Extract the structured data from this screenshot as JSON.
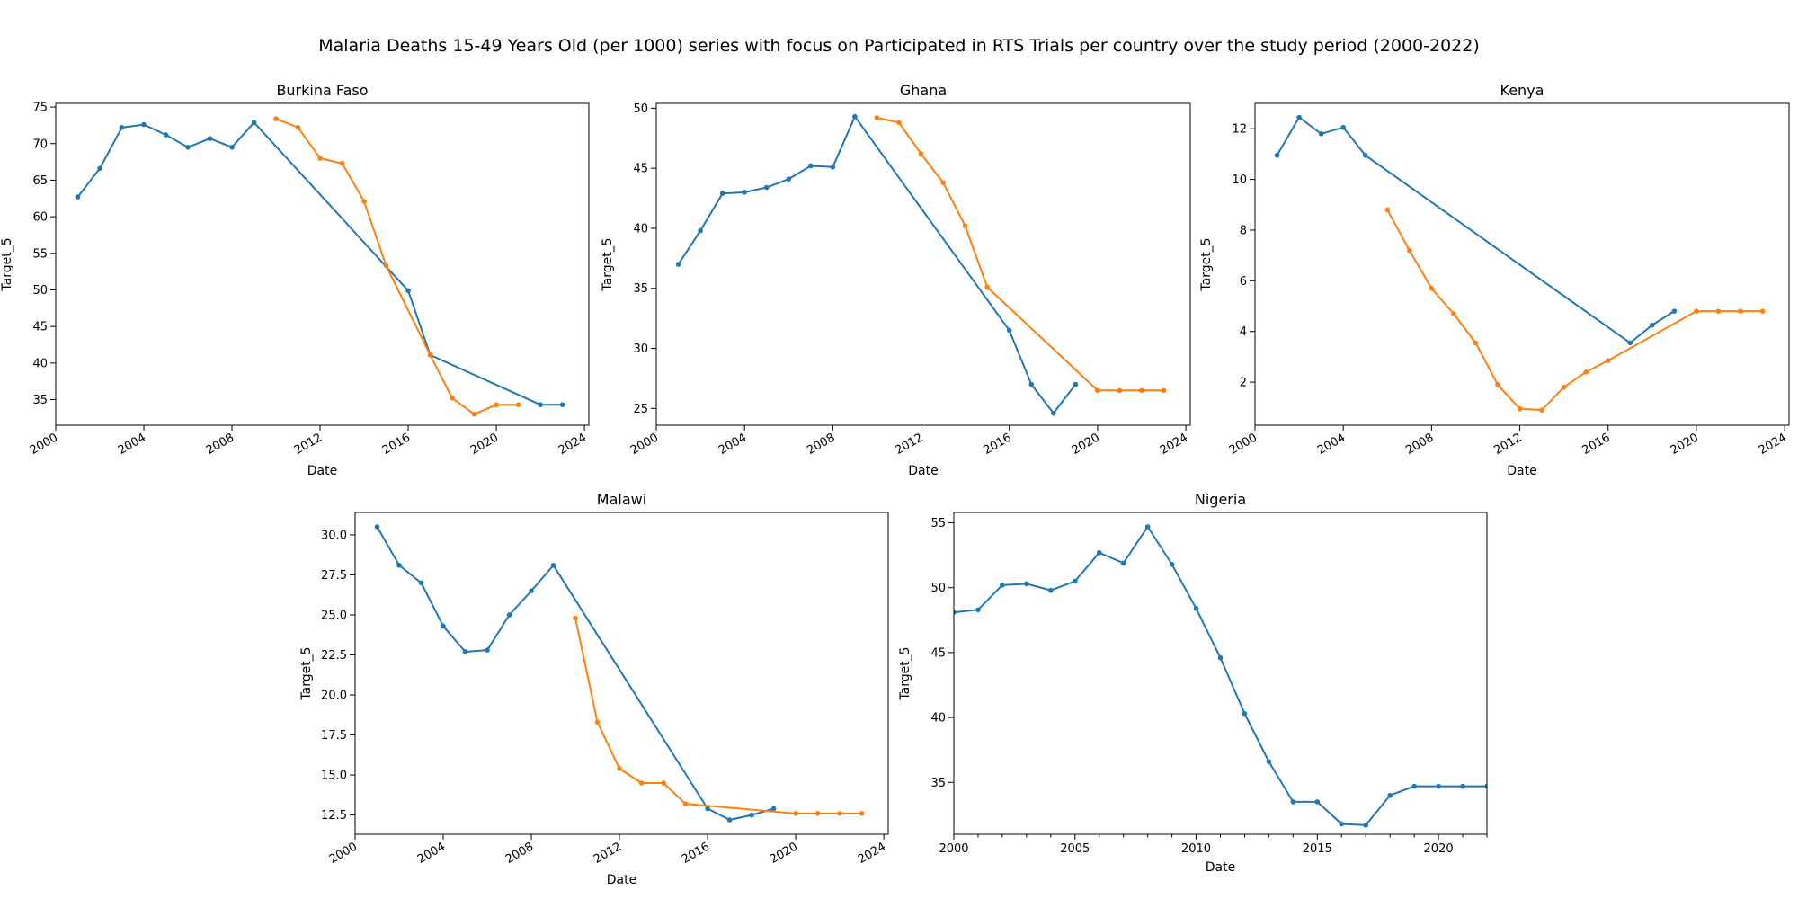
{
  "figure": {
    "title": "Malaria Deaths 15-49 Years Old (per 1000) series with focus on Participated in RTS Trials per country over the study period (2000-2022)"
  },
  "colors": {
    "series_a": "#1f77b4",
    "series_b": "#ff7f0e"
  },
  "chart_data": [
    {
      "type": "line",
      "title": "Burkina Faso",
      "xlabel": "Date",
      "ylabel": "Target_5",
      "xlim": [
        2000,
        2024.2
      ],
      "ylim": [
        31.5,
        75.5
      ],
      "xticks": [
        2000,
        2004,
        2008,
        2012,
        2016,
        2020,
        2024
      ],
      "yticks": [
        35,
        40,
        45,
        50,
        55,
        60,
        65,
        70,
        75
      ],
      "rotate_xticks": true,
      "series": [
        {
          "color": "#1f77b4",
          "x": [
            2001,
            2002,
            2003,
            2004,
            2005,
            2006,
            2007,
            2008,
            2009,
            2016,
            2017,
            2022,
            2023
          ],
          "y": [
            62.7,
            66.6,
            72.2,
            72.6,
            71.2,
            69.5,
            70.7,
            69.5,
            72.9,
            49.9,
            41.1,
            34.3,
            34.3
          ]
        },
        {
          "color": "#ff7f0e",
          "x": [
            2010,
            2011,
            2012,
            2013,
            2014,
            2015,
            2017,
            2018,
            2019,
            2020,
            2021
          ],
          "y": [
            73.4,
            72.2,
            68.0,
            67.3,
            62.1,
            53.3,
            41.1,
            35.2,
            33.0,
            34.3,
            34.3
          ]
        }
      ]
    },
    {
      "type": "line",
      "title": "Ghana",
      "xlabel": "Date",
      "ylabel": "Target_5",
      "xlim": [
        2000,
        2024.2
      ],
      "ylim": [
        23.6,
        50.4
      ],
      "xticks": [
        2000,
        2004,
        2008,
        2012,
        2016,
        2020,
        2024
      ],
      "yticks": [
        25,
        30,
        35,
        40,
        45,
        50
      ],
      "rotate_xticks": true,
      "series": [
        {
          "color": "#1f77b4",
          "x": [
            2001,
            2002,
            2003,
            2004,
            2005,
            2006,
            2007,
            2008,
            2009,
            2016,
            2017,
            2018,
            2019
          ],
          "y": [
            37.0,
            39.8,
            42.9,
            43.0,
            43.4,
            44.1,
            45.2,
            45.1,
            49.3,
            31.5,
            27.0,
            24.6,
            27.0
          ]
        },
        {
          "color": "#ff7f0e",
          "x": [
            2010,
            2011,
            2012,
            2013,
            2014,
            2015,
            2020,
            2021,
            2022,
            2023
          ],
          "y": [
            49.2,
            48.8,
            46.2,
            43.8,
            40.2,
            35.1,
            26.5,
            26.5,
            26.5,
            26.5
          ]
        }
      ]
    },
    {
      "type": "line",
      "title": "Kenya",
      "xlabel": "Date",
      "ylabel": "Target_5",
      "xlim": [
        2000,
        2024.2
      ],
      "ylim": [
        0.3,
        13.0
      ],
      "xticks": [
        2000,
        2004,
        2008,
        2012,
        2016,
        2020,
        2024
      ],
      "yticks": [
        2,
        4,
        6,
        8,
        10,
        12
      ],
      "rotate_xticks": true,
      "series": [
        {
          "color": "#1f77b4",
          "x": [
            2001,
            2002,
            2003,
            2004,
            2005,
            2017,
            2018,
            2019
          ],
          "y": [
            10.95,
            12.45,
            11.8,
            12.05,
            10.95,
            3.55,
            4.25,
            4.8
          ]
        },
        {
          "color": "#ff7f0e",
          "x": [
            2006,
            2007,
            2008,
            2009,
            2010,
            2011,
            2012,
            2013,
            2014,
            2015,
            2016,
            2020,
            2021,
            2022,
            2023
          ],
          "y": [
            8.8,
            7.2,
            5.7,
            4.7,
            3.55,
            1.9,
            0.95,
            0.9,
            1.8,
            2.4,
            2.85,
            4.8,
            4.8,
            4.8,
            4.8
          ]
        }
      ]
    },
    {
      "type": "line",
      "title": "Malawi",
      "xlabel": "Date",
      "ylabel": "Target_5",
      "xlim": [
        2000,
        2024.2
      ],
      "ylim": [
        11.3,
        31.4
      ],
      "xticks": [
        2000,
        2004,
        2008,
        2012,
        2016,
        2020,
        2024
      ],
      "yticks": [
        12.5,
        15.0,
        17.5,
        20.0,
        22.5,
        25.0,
        27.5,
        30.0
      ],
      "ytick_decimals": 1,
      "rotate_xticks": true,
      "series": [
        {
          "color": "#1f77b4",
          "x": [
            2001,
            2002,
            2003,
            2004,
            2005,
            2006,
            2007,
            2008,
            2009,
            2016,
            2017,
            2018,
            2019
          ],
          "y": [
            30.5,
            28.1,
            27.0,
            24.3,
            22.7,
            22.8,
            25.0,
            26.5,
            28.1,
            12.9,
            12.2,
            12.5,
            12.9
          ]
        },
        {
          "color": "#ff7f0e",
          "x": [
            2010,
            2011,
            2012,
            2013,
            2014,
            2015,
            2020,
            2021,
            2022,
            2023
          ],
          "y": [
            24.8,
            18.3,
            15.4,
            14.5,
            14.5,
            13.2,
            12.6,
            12.6,
            12.6,
            12.6
          ]
        }
      ]
    },
    {
      "type": "line",
      "title": "Nigeria",
      "xlabel": "Date",
      "ylabel": "Target_5",
      "xlim": [
        2000,
        2022
      ],
      "ylim": [
        31.0,
        55.8
      ],
      "xticks": [
        2000,
        2005,
        2010,
        2015,
        2020
      ],
      "yticks": [
        35,
        40,
        45,
        50,
        55
      ],
      "minor_xticks": true,
      "rotate_xticks": false,
      "series": [
        {
          "color": "#1f77b4",
          "x": [
            2000,
            2001,
            2002,
            2003,
            2004,
            2005,
            2006,
            2007,
            2008,
            2009,
            2010,
            2011,
            2012,
            2013,
            2014,
            2015,
            2016,
            2017,
            2018,
            2019,
            2020,
            2021,
            2022
          ],
          "y": [
            48.1,
            48.3,
            50.2,
            50.3,
            49.8,
            50.5,
            52.7,
            51.9,
            54.7,
            51.8,
            48.4,
            44.6,
            40.3,
            36.6,
            33.5,
            33.5,
            31.8,
            31.7,
            34.0,
            34.7,
            34.7,
            34.7,
            34.7
          ]
        }
      ]
    }
  ]
}
